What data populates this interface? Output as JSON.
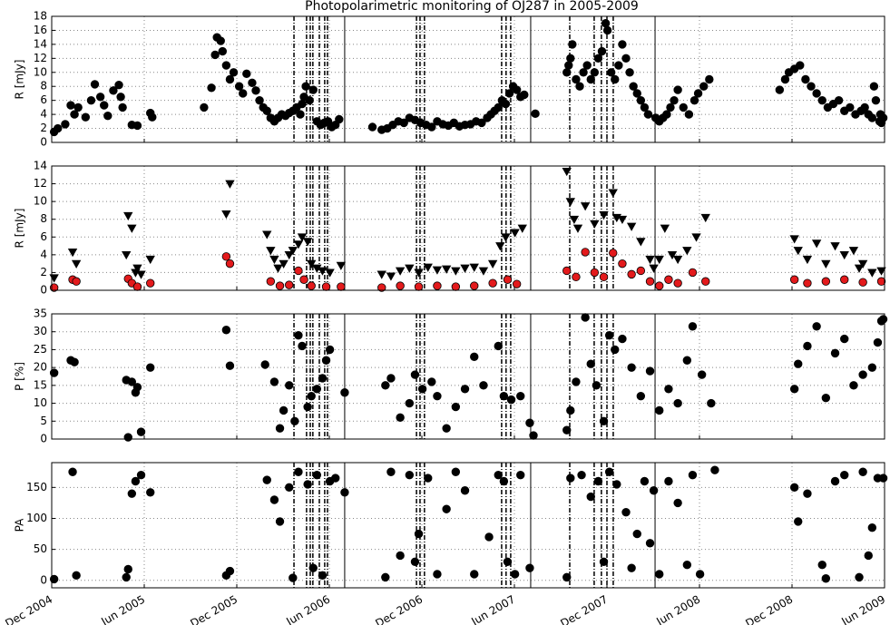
{
  "chart_data": [
    {
      "type": "scatter",
      "title": "Photopolarimetric monitoring of OJ287 in 2005-2009",
      "y_label": "R [mJy]",
      "xlim": [
        2004.917,
        2009.417
      ],
      "ylim": [
        0,
        18
      ],
      "yticks": [
        0,
        2,
        4,
        6,
        8,
        10,
        12,
        14,
        16,
        18
      ],
      "grid": true,
      "vlines_solid": [
        2006.5,
        2007.505,
        2008.177
      ],
      "vlines_dashdot": [
        2006.226,
        2006.294,
        2006.314,
        2006.328,
        2006.363,
        2006.392,
        2006.407,
        2006.888,
        2006.907,
        2006.931,
        2007.348,
        2007.372,
        2007.397,
        2007.716,
        2007.848,
        2007.887,
        2007.917,
        2007.951
      ],
      "series": [
        {
          "color": "#000000",
          "marker": "circle",
          "x": [
            2004.93,
            2004.95,
            2004.99,
            2005.02,
            2005.04,
            2005.06,
            2005.1,
            2005.13,
            2005.15,
            2005.18,
            2005.2,
            2005.22,
            2005.25,
            2005.28,
            2005.29,
            2005.3,
            2005.35,
            2005.38,
            2005.45,
            2005.46,
            2005.74,
            2005.78,
            2005.8,
            2005.81,
            2005.83,
            2005.84,
            2005.86,
            2005.88,
            2005.9,
            2005.93,
            2005.95,
            2005.97,
            2006.0,
            2006.02,
            2006.04,
            2006.06,
            2006.08,
            2006.1,
            2006.12,
            2006.14,
            2006.16,
            2006.18,
            2006.2,
            2006.22,
            2006.24,
            2006.26,
            2006.27,
            2006.28,
            2006.29,
            2006.31,
            2006.33,
            2006.35,
            2006.37,
            2006.39,
            2006.41,
            2006.43,
            2006.45,
            2006.47,
            2006.65,
            2006.7,
            2006.73,
            2006.76,
            2006.79,
            2006.82,
            2006.85,
            2006.88,
            2006.91,
            2006.94,
            2006.97,
            2007.0,
            2007.03,
            2007.06,
            2007.09,
            2007.12,
            2007.15,
            2007.18,
            2007.21,
            2007.24,
            2007.27,
            2007.29,
            2007.31,
            2007.33,
            2007.35,
            2007.37,
            2007.39,
            2007.41,
            2007.43,
            2007.45,
            2007.47,
            2007.53,
            2007.7,
            2007.71,
            2007.72,
            2007.73,
            2007.75,
            2007.77,
            2007.79,
            2007.81,
            2007.83,
            2007.85,
            2007.87,
            2007.89,
            2007.91,
            2007.92,
            2007.94,
            2007.96,
            2007.98,
            2008.0,
            2008.02,
            2008.04,
            2008.06,
            2008.08,
            2008.1,
            2008.12,
            2008.14,
            2008.18,
            2008.2,
            2008.22,
            2008.24,
            2008.26,
            2008.28,
            2008.3,
            2008.33,
            2008.36,
            2008.39,
            2008.41,
            2008.44,
            2008.47,
            2008.85,
            2008.88,
            2008.9,
            2008.93,
            2008.96,
            2008.99,
            2009.02,
            2009.05,
            2009.08,
            2009.11,
            2009.14,
            2009.17,
            2009.2,
            2009.23,
            2009.26,
            2009.29,
            2009.31,
            2009.33,
            2009.35,
            2009.36,
            2009.37,
            2009.39,
            2009.395,
            2009.4,
            2009.41
          ],
          "values": [
            1.5,
            2.0,
            2.6,
            5.3,
            4.0,
            5.0,
            3.6,
            6.0,
            8.3,
            6.5,
            5.3,
            3.8,
            7.4,
            8.2,
            6.5,
            5.0,
            2.5,
            2.4,
            4.2,
            3.6,
            5.0,
            7.8,
            12.5,
            15.0,
            14.5,
            13.0,
            11.0,
            9.0,
            10.0,
            8.0,
            7.0,
            9.8,
            8.5,
            7.4,
            6.0,
            5.0,
            4.5,
            3.5,
            3.0,
            3.5,
            4.0,
            3.8,
            4.2,
            4.5,
            5.0,
            4.0,
            5.5,
            6.5,
            8.0,
            6.0,
            7.5,
            3.0,
            2.5,
            2.8,
            3.0,
            2.2,
            2.5,
            3.3,
            2.2,
            1.8,
            2.0,
            2.5,
            3.0,
            2.8,
            3.5,
            3.2,
            2.8,
            2.5,
            2.2,
            3.0,
            2.6,
            2.4,
            2.8,
            2.3,
            2.5,
            2.6,
            3.0,
            2.8,
            3.5,
            4.0,
            4.5,
            5.0,
            6.0,
            5.5,
            7.0,
            8.0,
            7.5,
            6.5,
            6.8,
            4.1,
            10.0,
            11.0,
            12.0,
            14.0,
            9.0,
            8.0,
            10.0,
            11.0,
            9.0,
            10.0,
            12.0,
            13.0,
            17.0,
            16.0,
            10.0,
            9.0,
            11.0,
            14.0,
            12.0,
            10.0,
            8.0,
            7.0,
            6.0,
            5.0,
            4.0,
            3.5,
            3.0,
            3.5,
            4.0,
            5.0,
            6.0,
            7.5,
            5.0,
            4.0,
            6.0,
            7.0,
            8.0,
            9.0,
            7.5,
            9.0,
            10.0,
            10.5,
            11.0,
            9.0,
            8.0,
            7.0,
            6.0,
            5.0,
            5.5,
            6.0,
            4.5,
            5.0,
            4.0,
            4.5,
            5.0,
            4.0,
            3.5,
            8.0,
            6.0,
            3.0,
            4.0,
            2.8,
            3.5
          ]
        }
      ]
    },
    {
      "type": "scatter",
      "y_label": "R [mJy]",
      "xlim": [
        2004.917,
        2009.417
      ],
      "ylim": [
        0,
        14
      ],
      "yticks": [
        0,
        2,
        4,
        6,
        8,
        10,
        12,
        14
      ],
      "grid": true,
      "series": [
        {
          "color": "#000000",
          "marker": "triangle-down",
          "x": [
            2004.93,
            2005.03,
            2005.05,
            2005.32,
            2005.33,
            2005.35,
            2005.37,
            2005.38,
            2005.4,
            2005.45,
            2005.86,
            2005.88,
            2006.08,
            2006.1,
            2006.12,
            2006.14,
            2006.17,
            2006.2,
            2006.22,
            2006.25,
            2006.27,
            2006.3,
            2006.32,
            2006.35,
            2006.38,
            2006.42,
            2006.48,
            2006.7,
            2006.75,
            2006.8,
            2006.85,
            2006.9,
            2006.95,
            2007.0,
            2007.05,
            2007.1,
            2007.15,
            2007.2,
            2007.25,
            2007.3,
            2007.34,
            2007.37,
            2007.42,
            2007.46,
            2007.7,
            2007.72,
            2007.74,
            2007.76,
            2007.8,
            2007.85,
            2007.9,
            2007.95,
            2007.97,
            2008.0,
            2008.05,
            2008.1,
            2008.15,
            2008.17,
            2008.2,
            2008.23,
            2008.27,
            2008.3,
            2008.35,
            2008.4,
            2008.45,
            2008.93,
            2008.95,
            2009.0,
            2009.05,
            2009.1,
            2009.15,
            2009.2,
            2009.25,
            2009.28,
            2009.3,
            2009.35,
            2009.4
          ],
          "values": [
            1.4,
            4.3,
            3.0,
            4.0,
            8.4,
            7.0,
            2.0,
            2.5,
            1.8,
            3.5,
            8.6,
            12.0,
            6.3,
            4.5,
            3.5,
            2.5,
            3.0,
            4.0,
            4.5,
            5.2,
            6.0,
            5.5,
            3.0,
            2.5,
            2.2,
            2.0,
            2.8,
            1.8,
            1.6,
            2.2,
            2.5,
            2.0,
            2.6,
            2.3,
            2.4,
            2.2,
            2.5,
            2.6,
            2.2,
            3.0,
            5.0,
            6.0,
            6.5,
            7.0,
            13.4,
            10.0,
            8.0,
            7.0,
            9.5,
            7.5,
            8.5,
            11.0,
            8.2,
            8.0,
            7.2,
            5.5,
            3.5,
            2.5,
            3.5,
            7.0,
            4.0,
            3.5,
            4.5,
            6.0,
            8.2,
            5.8,
            4.5,
            3.5,
            5.3,
            3.0,
            5.0,
            4.0,
            4.5,
            2.5,
            3.0,
            2.0,
            2.2
          ]
        },
        {
          "color": "#e31a1c",
          "marker": "circle",
          "x": [
            2004.93,
            2005.03,
            2005.05,
            2005.33,
            2005.35,
            2005.38,
            2005.45,
            2005.86,
            2005.88,
            2006.1,
            2006.15,
            2006.2,
            2006.25,
            2006.28,
            2006.32,
            2006.4,
            2006.48,
            2006.7,
            2006.8,
            2006.9,
            2007.0,
            2007.1,
            2007.2,
            2007.3,
            2007.38,
            2007.43,
            2007.7,
            2007.75,
            2007.8,
            2007.85,
            2007.9,
            2007.95,
            2008.0,
            2008.05,
            2008.1,
            2008.15,
            2008.2,
            2008.25,
            2008.3,
            2008.38,
            2008.45,
            2008.93,
            2009.0,
            2009.1,
            2009.2,
            2009.3,
            2009.4
          ],
          "values": [
            0.3,
            1.2,
            1.0,
            1.3,
            0.8,
            0.4,
            0.8,
            3.8,
            3.0,
            1.0,
            0.5,
            0.6,
            2.2,
            1.2,
            0.5,
            0.4,
            0.4,
            0.3,
            0.5,
            0.4,
            0.5,
            0.4,
            0.5,
            0.8,
            1.2,
            0.7,
            2.2,
            1.5,
            4.3,
            2.0,
            1.5,
            4.2,
            3.0,
            1.8,
            2.2,
            1.0,
            0.5,
            1.2,
            0.8,
            2.0,
            1.0,
            1.2,
            0.8,
            1.0,
            1.2,
            0.9,
            1.0
          ]
        }
      ]
    },
    {
      "type": "scatter",
      "y_label": "P [%]",
      "xlim": [
        2004.917,
        2009.417
      ],
      "ylim": [
        0,
        35
      ],
      "yticks": [
        0,
        5,
        10,
        15,
        20,
        25,
        30,
        35
      ],
      "grid": true,
      "series": [
        {
          "color": "#000000",
          "marker": "circle",
          "x": [
            2004.93,
            2005.02,
            2005.04,
            2005.32,
            2005.33,
            2005.35,
            2005.37,
            2005.38,
            2005.4,
            2005.45,
            2005.86,
            2005.88,
            2006.07,
            2006.12,
            2006.15,
            2006.17,
            2006.2,
            2006.23,
            2006.25,
            2006.27,
            2006.3,
            2006.32,
            2006.35,
            2006.38,
            2006.4,
            2006.42,
            2006.5,
            2006.72,
            2006.75,
            2006.8,
            2006.85,
            2006.88,
            2006.92,
            2006.97,
            2007.0,
            2007.05,
            2007.1,
            2007.15,
            2007.2,
            2007.25,
            2007.33,
            2007.36,
            2007.4,
            2007.45,
            2007.5,
            2007.52,
            2007.7,
            2007.72,
            2007.75,
            2007.8,
            2007.83,
            2007.86,
            2007.9,
            2007.93,
            2007.96,
            2008.0,
            2008.05,
            2008.1,
            2008.15,
            2008.2,
            2008.25,
            2008.3,
            2008.35,
            2008.38,
            2008.43,
            2008.48,
            2008.93,
            2008.95,
            2009.0,
            2009.05,
            2009.1,
            2009.15,
            2009.2,
            2009.25,
            2009.3,
            2009.35,
            2009.38,
            2009.4,
            2009.41
          ],
          "values": [
            18.5,
            22,
            21.5,
            16.5,
            0.5,
            16,
            13,
            14.5,
            2,
            20,
            30.5,
            20.5,
            20.8,
            16,
            3,
            8,
            15,
            5,
            29,
            26,
            9,
            12,
            14,
            17,
            22,
            25,
            13,
            15,
            17,
            6,
            10,
            18,
            14,
            16,
            12,
            3,
            9,
            14,
            23,
            15,
            26,
            12,
            11,
            12,
            4.5,
            1,
            2.5,
            8,
            16,
            34,
            21,
            15,
            5,
            29,
            25,
            28,
            20,
            12,
            19,
            8,
            14,
            10,
            22,
            31.5,
            18,
            10,
            14,
            21,
            26,
            31.5,
            11.5,
            24,
            28,
            15,
            18,
            20,
            27,
            33,
            33.5
          ]
        }
      ]
    },
    {
      "type": "scatter",
      "y_label": "PA",
      "xlim": [
        2004.917,
        2009.417
      ],
      "ylim": [
        -12,
        190
      ],
      "yticks": [
        0,
        50,
        100,
        150
      ],
      "grid": true,
      "xticks": [
        {
          "value": 2004.917,
          "label": "Dec 2004"
        },
        {
          "value": 2005.417,
          "label": "Jun 2005"
        },
        {
          "value": 2005.917,
          "label": "Dec 2005"
        },
        {
          "value": 2006.417,
          "label": "Jun 2006"
        },
        {
          "value": 2006.917,
          "label": "Dec 2006"
        },
        {
          "value": 2007.417,
          "label": "Jun 2007"
        },
        {
          "value": 2007.917,
          "label": "Dec 2007"
        },
        {
          "value": 2008.417,
          "label": "Jun 2008"
        },
        {
          "value": 2008.917,
          "label": "Dec 2008"
        },
        {
          "value": 2009.417,
          "label": "Jun 2009"
        }
      ],
      "series": [
        {
          "color": "#000000",
          "marker": "circle",
          "x": [
            2004.93,
            2005.03,
            2005.05,
            2005.32,
            2005.33,
            2005.35,
            2005.37,
            2005.4,
            2005.45,
            2005.86,
            2005.88,
            2006.08,
            2006.12,
            2006.15,
            2006.2,
            2006.22,
            2006.25,
            2006.3,
            2006.33,
            2006.35,
            2006.38,
            2006.42,
            2006.45,
            2006.5,
            2006.72,
            2006.75,
            2006.8,
            2006.85,
            2006.88,
            2006.9,
            2006.95,
            2007.0,
            2007.05,
            2007.1,
            2007.15,
            2007.2,
            2007.28,
            2007.33,
            2007.36,
            2007.38,
            2007.42,
            2007.45,
            2007.5,
            2007.7,
            2007.72,
            2007.78,
            2007.83,
            2007.87,
            2007.9,
            2007.93,
            2007.97,
            2008.02,
            2008.05,
            2008.08,
            2008.12,
            2008.15,
            2008.17,
            2008.2,
            2008.25,
            2008.3,
            2008.35,
            2008.38,
            2008.42,
            2008.5,
            2008.93,
            2008.95,
            2009.0,
            2009.08,
            2009.1,
            2009.15,
            2009.2,
            2009.28,
            2009.3,
            2009.33,
            2009.35,
            2009.38,
            2009.41
          ],
          "values": [
            2,
            175,
            8,
            5,
            18,
            140,
            160,
            170,
            142,
            8,
            15,
            162,
            130,
            95,
            150,
            4,
            175,
            155,
            20,
            170,
            8,
            160,
            165,
            142,
            5,
            175,
            40,
            170,
            30,
            75,
            165,
            10,
            115,
            175,
            145,
            10,
            70,
            170,
            160,
            30,
            10,
            170,
            20,
            5,
            165,
            170,
            135,
            160,
            30,
            175,
            155,
            110,
            20,
            75,
            160,
            60,
            145,
            10,
            160,
            125,
            25,
            170,
            10,
            178,
            150,
            95,
            140,
            25,
            3,
            160,
            170,
            5,
            175,
            40,
            85,
            165,
            165
          ]
        }
      ]
    }
  ]
}
